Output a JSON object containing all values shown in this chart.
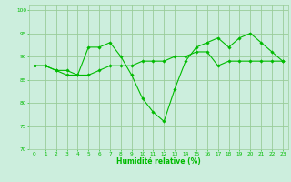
{
  "xlabel": "Humidité relative (%)",
  "background_color": "#cceedd",
  "grid_color": "#99cc99",
  "line_color": "#00bb00",
  "xlim": [
    -0.5,
    23.5
  ],
  "ylim": [
    70,
    101
  ],
  "yticks": [
    70,
    75,
    80,
    85,
    90,
    95,
    100
  ],
  "xticks": [
    0,
    1,
    2,
    3,
    4,
    5,
    6,
    7,
    8,
    9,
    10,
    11,
    12,
    13,
    14,
    15,
    16,
    17,
    18,
    19,
    20,
    21,
    22,
    23
  ],
  "line1_x": [
    0,
    1,
    2,
    3,
    4,
    5,
    6,
    7,
    8,
    9,
    10,
    11,
    12,
    13,
    14,
    15,
    16,
    17,
    18,
    19,
    20,
    21,
    22,
    23
  ],
  "line1_y": [
    88,
    88,
    87,
    86,
    86,
    92,
    92,
    93,
    90,
    86,
    81,
    78,
    76,
    83,
    89,
    92,
    93,
    94,
    92,
    94,
    95,
    93,
    91,
    89
  ],
  "line2_x": [
    0,
    1,
    2,
    3,
    4,
    5,
    6,
    7,
    8,
    9,
    10,
    11,
    12,
    13,
    14,
    15,
    16,
    17,
    18,
    19,
    20,
    21,
    22,
    23
  ],
  "line2_y": [
    88,
    88,
    87,
    87,
    86,
    86,
    87,
    88,
    88,
    88,
    89,
    89,
    89,
    90,
    90,
    91,
    91,
    88,
    89,
    89,
    89,
    89,
    89,
    89
  ]
}
